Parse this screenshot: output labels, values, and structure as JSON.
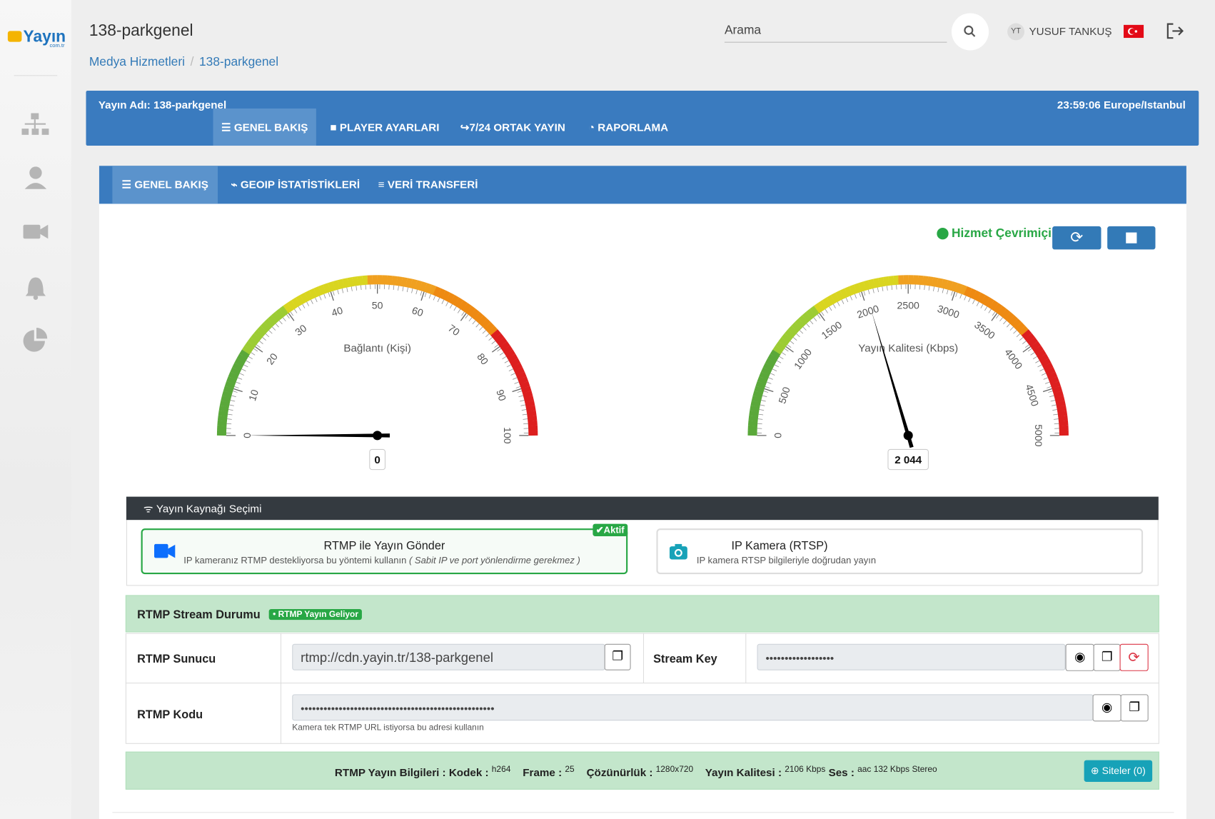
{
  "logo": "Yayın",
  "logo_sub": "com.tr",
  "header": {
    "title": "138-parkgenel",
    "search_placeholder": "Arama",
    "user_initials": "YT",
    "user_name": "YUSUF TANKUŞ"
  },
  "breadcrumb": [
    "Medya Hizmetleri",
    "138-parkgenel"
  ],
  "stream_bar": {
    "name": "Yayın Adı: 138-parkgenel",
    "time": "23:59:06 Europe/Istanbul",
    "tabs": [
      "GENEL BAKIŞ",
      "PLAYER AYARLARI",
      "7/24 ORTAK YAYIN",
      "RAPORLAMA"
    ]
  },
  "sub_tabs": [
    "GENEL BAKIŞ",
    "GEOIP İSTATİSTİKLERİ",
    "VERİ TRANSFERİ"
  ],
  "status": "Hizmet Çevrimiçi",
  "gauges": [
    {
      "title": "Bağlantı (Kişi)",
      "min": 0,
      "max": 100,
      "ticks": [
        0,
        10,
        20,
        30,
        40,
        50,
        60,
        70,
        80,
        90,
        100
      ],
      "value": 0,
      "value_label": "0"
    },
    {
      "title": "Yayın Kalitesi (Kbps)",
      "min": 0,
      "max": 5000,
      "ticks": [
        0,
        500,
        1000,
        1500,
        2000,
        2500,
        3000,
        3500,
        4000,
        4500,
        5000
      ],
      "value": 2044,
      "value_label": "2 044"
    }
  ],
  "source": {
    "title": "Yayın Kaynağı Seçimi",
    "options": [
      {
        "title": "RTMP ile Yayın Gönder",
        "desc": "IP kameranız RTMP destekliyorsa bu yöntemi kullanın",
        "note": "( Sabit IP ve port yönlendirme gerekmez )",
        "badge": "Aktif"
      },
      {
        "title": "IP Kamera (RTSP)",
        "desc": "IP kamera RTSP bilgileriyle doğrudan yayın"
      }
    ]
  },
  "rtmp_status": {
    "title": "RTMP Stream Durumu",
    "badge": "• RTMP Yayın Geliyor"
  },
  "fields": {
    "server_label": "RTMP Sunucu",
    "server_value": "rtmp://cdn.yayin.tr/138-parkgenel",
    "key_label": "Stream Key",
    "key_value": "••••••••••••••••••",
    "code_label": "RTMP Kodu",
    "code_value": "•••••••••••••••••••••••••••••••••••••••••••••••••••",
    "code_help": "Kamera tek RTMP URL istiyorsa bu adresi kullanın"
  },
  "info": {
    "label": "RTMP Yayın Bilgileri : Kodek :",
    "codec": "h264",
    "frame_label": "Frame :",
    "frame": "25",
    "res_label": "Çözünürlük :",
    "res": "1280x720",
    "quality_label": "Yayın Kalitesi :",
    "quality": "2106 Kbps",
    "audio_label": "Ses :",
    "audio": "aac 132 Kbps Stereo",
    "sites_button": "Siteler (0)"
  }
}
